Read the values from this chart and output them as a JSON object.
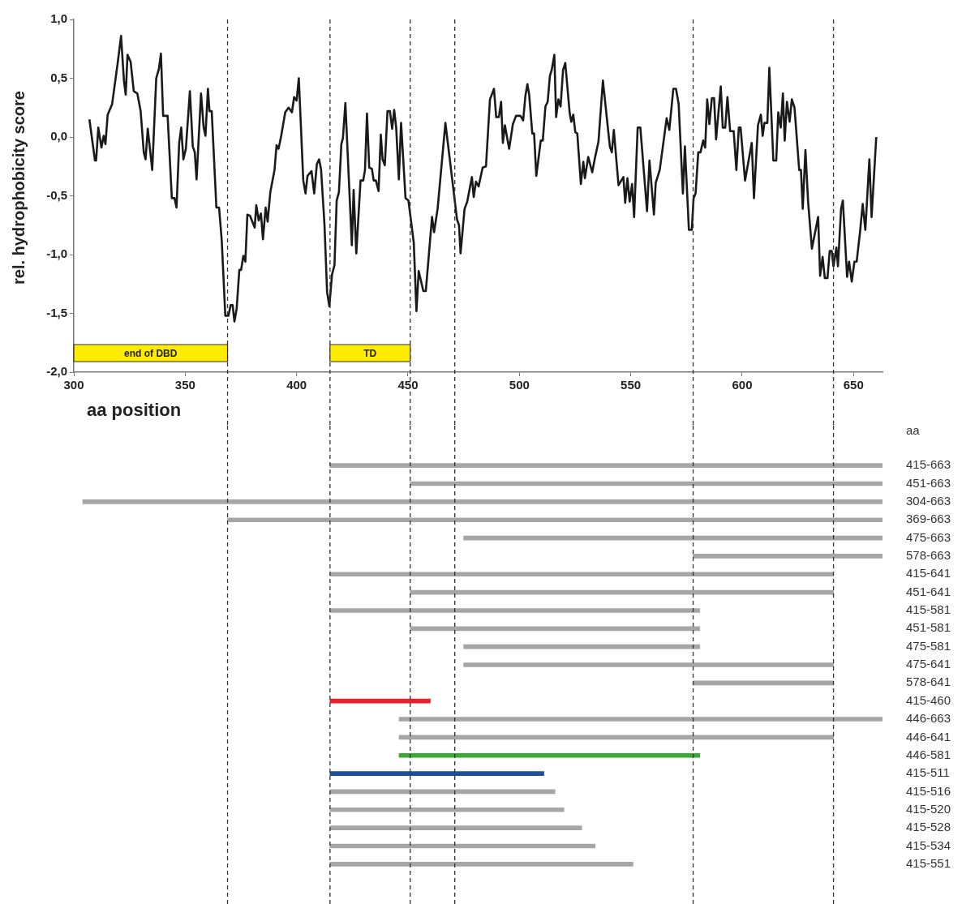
{
  "chart_data": [
    {
      "type": "line",
      "ylabel": "rel. hydrophobicity score",
      "xlabel": "aa position",
      "color": "#1a1a1a",
      "x": [
        307,
        309.5,
        310,
        311,
        312.4,
        313.4,
        314.2,
        315.2,
        317.2,
        319.7,
        321.2,
        322.5,
        323.3,
        324.1,
        325.5,
        326.9,
        328.5,
        330,
        331.4,
        332.2,
        333.2,
        335.2,
        337,
        338.2,
        339.1,
        340.1,
        342.1,
        344,
        345.2,
        346.1,
        347.3,
        348.2,
        349.2,
        350.3,
        352.1,
        353.4,
        354.3,
        355.1,
        357.1,
        358.3,
        359.1,
        360.2,
        360.9,
        361.9,
        364,
        365.2,
        366.4,
        368,
        369.4,
        370.4,
        371.3,
        372.1,
        373.1,
        374.3,
        375.1,
        376.1,
        377,
        377.9,
        379.1,
        381.2,
        381.9,
        383,
        384,
        384.9,
        386.1,
        387,
        388.2,
        390.1,
        391,
        391.9,
        393.1,
        394.9,
        396.4,
        397.9,
        398.9,
        400,
        401,
        403,
        404,
        404.9,
        406.7,
        407.9,
        409.1,
        410.1,
        411,
        412.5,
        413.7,
        414.7,
        415.9,
        417,
        418,
        419,
        420.1,
        420.8,
        421.9,
        424.8,
        425.6,
        426.8,
        428.7,
        429.9,
        430.7,
        431.6,
        432.6,
        433.8,
        434.6,
        435.6,
        436.8,
        437.8,
        438.6,
        439.6,
        440.8,
        441.9,
        442.9,
        443.8,
        444.7,
        445.9,
        446.9,
        448.9,
        450.2,
        452.6,
        453.8,
        454.8,
        456.9,
        458,
        460.8,
        461.7,
        463.3,
        466.8,
        472,
        472.9,
        473.6,
        475.4,
        476.6,
        478.7,
        479.5,
        480.5,
        481.7,
        483.5,
        485,
        486.8,
        488.6,
        489.6,
        490.8,
        491.8,
        492.6,
        493.5,
        495.4,
        497.1,
        498.5,
        500.5,
        501.7,
        502.7,
        503.6,
        504.4,
        505.8,
        506.6,
        507.6,
        509.6,
        510.5,
        511.7,
        512.7,
        513.7,
        514.5,
        515.7,
        516.5,
        517.5,
        518.5,
        519.6,
        520.6,
        522.6,
        523.3,
        524.2,
        525.1,
        526,
        527.6,
        528.7,
        529.4,
        530.9,
        532.7,
        533.9,
        535.5,
        537.5,
        540.6,
        541.5,
        542.4,
        544.5,
        546.7,
        547.5,
        548.5,
        549.5,
        550.6,
        551.5,
        553.1,
        554.3,
        557.3,
        558.4,
        560.4,
        561.2,
        563,
        566.1,
        567.3,
        569.1,
        570.3,
        571.5,
        573.4,
        574.3,
        576.1,
        577.4,
        578.2,
        579.1,
        580.3,
        581.3,
        582.5,
        583.4,
        584.3,
        585.3,
        586.4,
        587.4,
        588.3,
        590.4,
        591.3,
        592.4,
        593.4,
        594.6,
        596.2,
        597.4,
        598.5,
        599.3,
        601.3,
        604.3,
        605.3,
        607.1,
        608.4,
        609.2,
        610,
        611.3,
        612.2,
        614,
        615.3,
        616.2,
        617.3,
        618.3,
        619.1,
        620.1,
        621.3,
        622.3,
        623.5,
        625.6,
        626.4,
        627.2,
        628.4,
        629.6,
        631.3,
        634.1,
        635,
        636.1,
        637.1,
        638.3,
        639.3,
        640.2,
        641,
        642.3,
        643,
        644.4,
        645.2,
        647.1,
        648,
        649.2,
        650.4,
        651.4,
        652.9,
        654.1,
        655.3,
        657.1,
        658.1,
        660.2
      ],
      "values": [
        0.15,
        -0.2,
        -0.2,
        0.08,
        -0.09,
        0.01,
        -0.06,
        0.19,
        0.28,
        0.63,
        0.86,
        0.48,
        0.36,
        0.7,
        0.64,
        0.39,
        0.37,
        0.22,
        -0.13,
        -0.19,
        0.07,
        -0.28,
        0.5,
        0.58,
        0.71,
        0.18,
        0.18,
        -0.52,
        -0.52,
        -0.6,
        -0.05,
        0.08,
        -0.19,
        -0.1,
        0.39,
        -0.08,
        -0.13,
        -0.36,
        0.37,
        0.08,
        0.01,
        0.41,
        0.22,
        0.22,
        -0.6,
        -0.6,
        -0.88,
        -1.52,
        -1.52,
        -1.43,
        -1.43,
        -1.57,
        -1.46,
        -1.13,
        -1.13,
        -1.01,
        -1.06,
        -0.66,
        -0.67,
        -0.77,
        -0.58,
        -0.71,
        -0.65,
        -0.87,
        -0.6,
        -0.72,
        -0.47,
        -0.28,
        -0.07,
        -0.1,
        0.01,
        0.21,
        0.25,
        0.21,
        0.34,
        0.31,
        0.5,
        -0.37,
        -0.48,
        -0.33,
        -0.29,
        -0.48,
        -0.23,
        -0.19,
        -0.28,
        -0.74,
        -1.32,
        -1.44,
        -1.17,
        -1.09,
        -0.54,
        -0.47,
        -0.06,
        -0.01,
        0.29,
        -0.92,
        -0.45,
        -0.99,
        -0.37,
        -0.37,
        -0.28,
        0.2,
        -0.26,
        -0.27,
        -0.37,
        -0.37,
        -0.46,
        0.02,
        -0.19,
        -0.24,
        0.22,
        0.22,
        0.07,
        0.23,
        0.08,
        -0.36,
        0.12,
        -0.52,
        -0.54,
        -0.9,
        -1.48,
        -1.14,
        -1.31,
        -1.31,
        -0.68,
        -0.81,
        -0.61,
        0.12,
        -0.7,
        -0.75,
        -0.99,
        -0.61,
        -0.55,
        -0.34,
        -0.51,
        -0.38,
        -0.42,
        -0.26,
        -0.25,
        0.32,
        0.41,
        0.17,
        0.17,
        0.3,
        -0.05,
        0.1,
        -0.1,
        0.11,
        0.18,
        0.18,
        0.14,
        0.35,
        0.45,
        0.36,
        0.03,
        0.03,
        -0.33,
        -0.03,
        -0.03,
        0.26,
        0.3,
        0.52,
        0.57,
        0.7,
        0.17,
        0.32,
        0.26,
        0.57,
        0.63,
        0.2,
        0.13,
        0.19,
        0.04,
        0.03,
        -0.4,
        -0.21,
        -0.35,
        -0.17,
        -0.3,
        -0.18,
        -0.04,
        0.48,
        -0.08,
        -0.13,
        0.06,
        -0.41,
        -0.34,
        -0.56,
        -0.35,
        -0.55,
        -0.4,
        -0.68,
        0.08,
        0.08,
        -0.63,
        -0.2,
        -0.66,
        -0.39,
        -0.28,
        0.16,
        0.06,
        0.41,
        0.41,
        0.28,
        -0.48,
        -0.08,
        -0.79,
        -0.79,
        -0.52,
        -0.48,
        -0.13,
        -0.13,
        -0.03,
        -0.09,
        0.32,
        0.11,
        0.33,
        0.33,
        -0.02,
        0.43,
        0.08,
        0.08,
        0.34,
        0.05,
        0.05,
        -0.28,
        0.08,
        0.08,
        -0.37,
        -0.05,
        -0.52,
        0.1,
        0.19,
        0.01,
        0.12,
        0.12,
        0.59,
        -0.2,
        -0.2,
        0.21,
        0.08,
        0.37,
        -0.03,
        0.3,
        0.13,
        0.32,
        0.25,
        -0.28,
        -0.28,
        -0.61,
        -0.11,
        -0.55,
        -0.95,
        -0.68,
        -1.18,
        -1.02,
        -1.2,
        -1.2,
        -0.97,
        -0.97,
        -1.1,
        -0.94,
        -1.1,
        -0.61,
        -0.54,
        -1.19,
        -1.06,
        -1.23,
        -1.06,
        -1.06,
        -0.81,
        -0.57,
        -0.79,
        -0.19,
        -0.68,
        0
      ],
      "xlim": [
        300,
        663
      ],
      "xticks": [
        300,
        350,
        400,
        450,
        500,
        550,
        600,
        650
      ],
      "ylim": [
        -2,
        1
      ],
      "yticks": [
        {
          "value": -2,
          "label": "-2,0"
        },
        {
          "value": -1.5,
          "label": "-1,5"
        },
        {
          "value": -1,
          "label": "-1,0"
        },
        {
          "value": -0.5,
          "label": "-0,5"
        },
        {
          "value": 0,
          "label": "0,0"
        },
        {
          "value": 0.5,
          "label": "0,5"
        },
        {
          "value": 1,
          "label": "1,0"
        }
      ],
      "bands": [
        {
          "axis": "x",
          "from": 300,
          "to": 369,
          "label": "end of DBD",
          "color": "#ffec00"
        },
        {
          "axis": "x",
          "from": 415,
          "to": 451,
          "label": "TD",
          "color": "#ffec00"
        }
      ],
      "ref_lines": [
        {
          "axis": "x",
          "value": 369,
          "line_style": "dashed"
        },
        {
          "axis": "x",
          "value": 415,
          "line_style": "dashed"
        },
        {
          "axis": "x",
          "value": 451,
          "line_style": "dashed"
        },
        {
          "axis": "x",
          "value": 471,
          "line_style": "dashed"
        },
        {
          "axis": "x",
          "value": 578,
          "line_style": "dashed"
        },
        {
          "axis": "x",
          "value": 641,
          "line_style": "dashed"
        }
      ]
    },
    {
      "type": "bar",
      "orientation": "horizontal",
      "ylabel": "aa",
      "tick_labels": "y",
      "xlim": [
        300,
        663
      ],
      "categories": [
        "415-663",
        "451-663",
        "304-663",
        "369-663",
        "475-663",
        "578-663",
        "415-641",
        "451-641",
        "415-581",
        "451-581",
        "475-581",
        "475-641",
        "578-641",
        "415-460",
        "446-663",
        "446-641",
        "446-581",
        "415-511",
        "415-516",
        "415-520",
        "415-528",
        "415-534",
        "415-551"
      ],
      "base": [
        415,
        451,
        304,
        369,
        475,
        578,
        415,
        451,
        415,
        451,
        475,
        475,
        578,
        415,
        446,
        446,
        446,
        415,
        415,
        415,
        415,
        415,
        415
      ],
      "values": [
        248,
        212,
        359,
        294,
        188,
        85,
        226,
        190,
        166,
        130,
        106,
        166,
        63,
        45,
        217,
        195,
        135,
        96,
        101,
        105,
        113,
        119,
        136
      ],
      "colors": [
        "#a6a6a6",
        "#a6a6a6",
        "#a6a6a6",
        "#a6a6a6",
        "#a6a6a6",
        "#a6a6a6",
        "#a6a6a6",
        "#a6a6a6",
        "#a6a6a6",
        "#a6a6a6",
        "#a6a6a6",
        "#a6a6a6",
        "#a6a6a6",
        "#e8202a",
        "#a6a6a6",
        "#a6a6a6",
        "#3aaa35",
        "#1f4e9c",
        "#a6a6a6",
        "#a6a6a6",
        "#a6a6a6",
        "#a6a6a6",
        "#a6a6a6"
      ],
      "ref_lines": [
        {
          "axis": "x",
          "value": 369,
          "line_style": "dashed"
        },
        {
          "axis": "x",
          "value": 415,
          "line_style": "dashed"
        },
        {
          "axis": "x",
          "value": 451,
          "line_style": "dashed"
        },
        {
          "axis": "x",
          "value": 471,
          "line_style": "dashed"
        },
        {
          "axis": "x",
          "value": 578,
          "line_style": "dashed"
        },
        {
          "axis": "x",
          "value": 641,
          "line_style": "dashed"
        }
      ]
    }
  ]
}
